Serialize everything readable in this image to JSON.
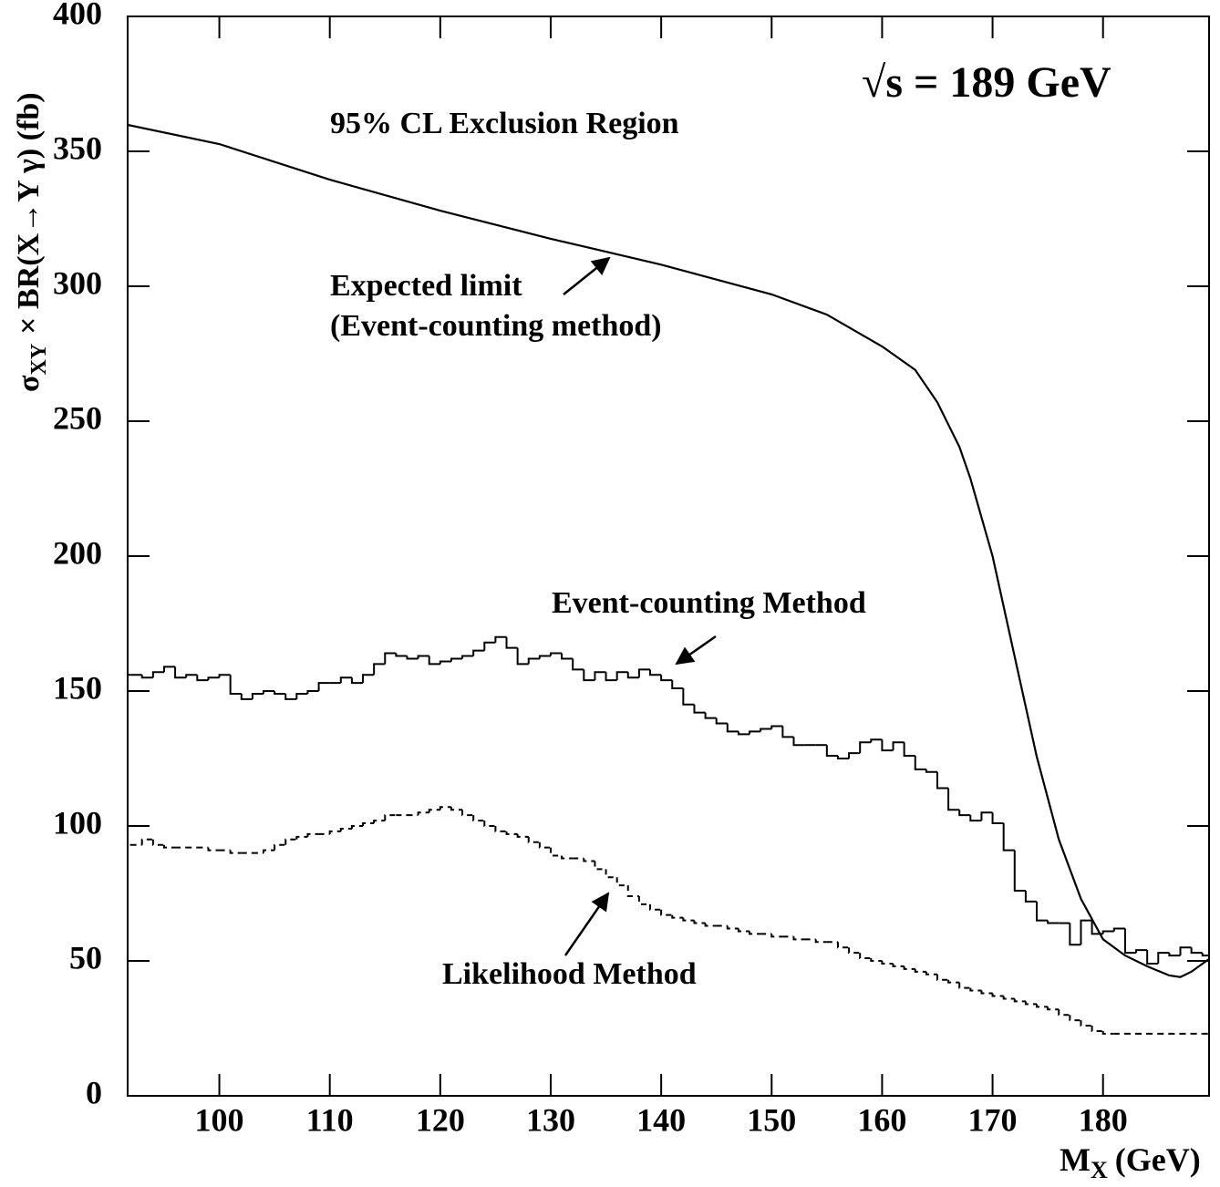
{
  "chart_data": {
    "type": "line",
    "title": "95% CL Exclusion Region",
    "subtitle": "√s = 189 GeV",
    "x_label_parts": [
      "M",
      "X",
      "(GeV)"
    ],
    "y_label_parts": [
      "σ",
      "XY",
      "× BR(X→Y γ)  (fb)"
    ],
    "xlim": [
      91.7,
      189.6
    ],
    "ylim": [
      0,
      400
    ],
    "xticks": [
      100,
      110,
      120,
      130,
      140,
      150,
      160,
      170,
      180
    ],
    "yticks": [
      0,
      50,
      100,
      150,
      200,
      250,
      300,
      350,
      400
    ],
    "annotations": [
      "Expected limit",
      "(Event-counting method)",
      "Event-counting Method",
      "Likelihood Method"
    ],
    "series": [
      {
        "style": "curve",
        "color": "#000000",
        "x": [
          91.7,
          100,
          110,
          120,
          130,
          140,
          150,
          155,
          160,
          163,
          165,
          167,
          168,
          170,
          172,
          174,
          176,
          178,
          180,
          182,
          184,
          186,
          187,
          188,
          189.6
        ],
        "values": [
          359.8,
          352.7,
          339.5,
          328,
          317.6,
          308,
          297,
          289.5,
          277.7,
          269,
          257,
          240.5,
          228.7,
          200,
          162.8,
          125.7,
          95,
          73,
          58,
          52,
          48,
          44.6,
          44,
          46,
          50.7
        ]
      },
      {
        "style": "step",
        "color": "#000000",
        "bins": [
          91,
          92,
          93,
          94,
          95,
          96,
          97,
          98,
          99,
          100,
          101,
          102,
          103,
          104,
          105,
          106,
          107,
          108,
          109,
          110,
          111,
          112,
          113,
          114,
          115,
          116,
          117,
          118,
          119,
          120,
          121,
          122,
          123,
          124,
          125,
          126,
          127,
          128,
          129,
          130,
          131,
          132,
          133,
          134,
          135,
          136,
          137,
          138,
          139,
          140,
          141,
          142,
          143,
          144,
          145,
          146,
          147,
          148,
          149,
          150,
          151,
          152,
          153,
          154,
          155,
          156,
          157,
          158,
          159,
          160,
          161,
          162,
          163,
          164,
          165,
          166,
          167,
          168,
          169,
          170,
          171,
          172,
          173,
          174,
          175,
          176,
          177,
          178,
          179,
          180,
          181,
          182,
          183,
          184,
          185,
          186,
          187,
          188,
          189,
          190
        ],
        "values": [
          156,
          156,
          155,
          157,
          159,
          155,
          156,
          154,
          155,
          156,
          149,
          147,
          149,
          150,
          149,
          147,
          149,
          150,
          153,
          153,
          155,
          153,
          156,
          160,
          164,
          163,
          162,
          163,
          160,
          161,
          162,
          163,
          165,
          168,
          170,
          166,
          160,
          162,
          163,
          164,
          162,
          158,
          154,
          157,
          154,
          157,
          155,
          158,
          156,
          154,
          151,
          145,
          142,
          140,
          138,
          135,
          134,
          135,
          136,
          137,
          133,
          130,
          130,
          130,
          126,
          125,
          127,
          131,
          132,
          128,
          131,
          126,
          121,
          120,
          114,
          106,
          104,
          102,
          105,
          101,
          91,
          76,
          72,
          65,
          64,
          64,
          56,
          65,
          60,
          61,
          62,
          53,
          54,
          49,
          53,
          52,
          55,
          53,
          52
        ]
      },
      {
        "style": "dashed-step",
        "color": "#000000",
        "bins": [
          91,
          92,
          93,
          94,
          95,
          96,
          97,
          98,
          99,
          100,
          101,
          102,
          103,
          104,
          105,
          106,
          107,
          108,
          109,
          110,
          111,
          112,
          113,
          114,
          115,
          116,
          117,
          118,
          119,
          120,
          121,
          122,
          123,
          124,
          125,
          126,
          127,
          128,
          129,
          130,
          131,
          132,
          133,
          134,
          135,
          136,
          137,
          138,
          139,
          140,
          141,
          142,
          143,
          144,
          145,
          146,
          147,
          148,
          149,
          150,
          151,
          152,
          153,
          154,
          155,
          156,
          157,
          158,
          159,
          160,
          161,
          162,
          163,
          164,
          165,
          166,
          167,
          168,
          169,
          170,
          171,
          172,
          173,
          174,
          175,
          176,
          177,
          178,
          179,
          180,
          181,
          182,
          183,
          184,
          185,
          186,
          187,
          188,
          189,
          190
        ],
        "values": [
          93,
          93,
          95,
          93,
          92,
          92,
          92,
          92,
          91,
          91,
          90,
          90,
          90,
          91,
          93,
          95,
          96,
          97,
          97,
          98,
          99,
          100,
          101,
          102,
          104,
          104,
          104,
          105,
          106,
          107,
          106,
          104,
          102,
          100,
          98,
          97,
          96,
          94,
          92,
          89,
          88,
          88,
          87,
          84,
          81,
          78,
          74,
          71,
          69,
          67,
          66,
          65,
          64,
          63,
          63,
          62,
          61,
          60,
          60,
          59,
          59,
          58,
          58,
          57,
          57,
          55,
          53,
          51,
          50,
          49,
          48,
          47,
          46,
          45,
          43,
          42,
          40,
          39,
          38,
          37,
          36,
          35,
          34,
          33,
          32,
          30,
          28,
          26,
          24,
          23,
          23,
          23,
          23,
          23,
          23,
          23,
          23,
          23,
          23
        ]
      }
    ]
  }
}
